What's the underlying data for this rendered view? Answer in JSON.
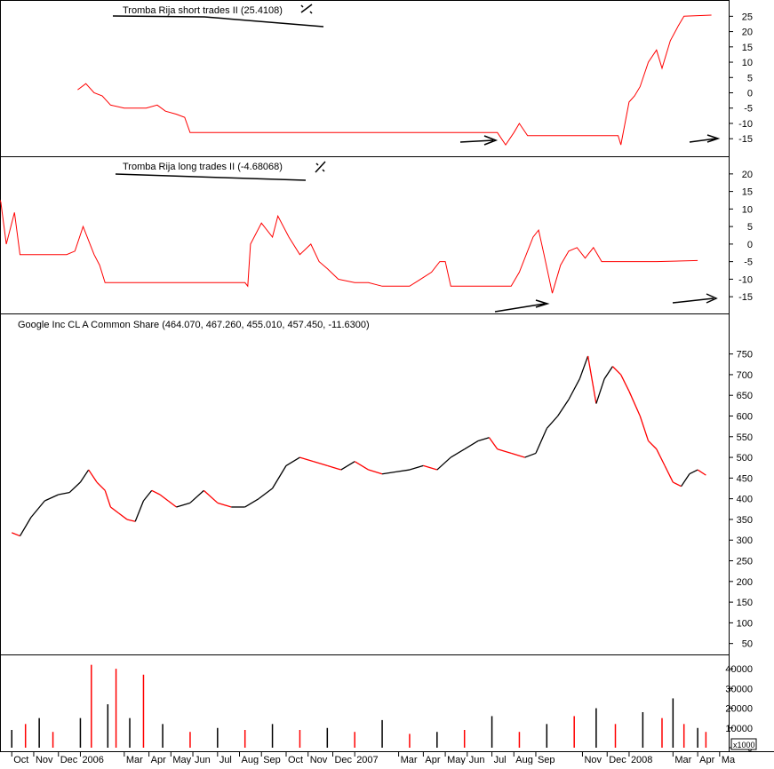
{
  "colors": {
    "background": "#ffffff",
    "up": "#000000",
    "down": "#ff0000",
    "frame": "#000000"
  },
  "panes": {
    "short": {
      "title": "Tromba Rija short trades II (25.4108)",
      "ticks": [
        25,
        20,
        15,
        10,
        5,
        0,
        -5,
        -10,
        -15
      ]
    },
    "long": {
      "title": "Tromba Rija long trades II (-4.68068)",
      "ticks": [
        20,
        15,
        10,
        5,
        0,
        -5,
        -10,
        -15
      ]
    },
    "price": {
      "title": "Google Inc CL A Common Share (464.070, 467.260, 455.010, 457.450, -11.6300)",
      "ticks": [
        750,
        700,
        650,
        600,
        550,
        500,
        450,
        400,
        350,
        300,
        250,
        200,
        150,
        100,
        50
      ]
    },
    "volume": {
      "ticks": [
        40000,
        30000,
        20000,
        10000,
        0
      ],
      "unit_label": "x1000"
    }
  },
  "x_axis": {
    "labels": [
      "Oct",
      "Nov",
      "Dec",
      "2006",
      "Mar",
      "Apr",
      "May",
      "Jun",
      "Jul",
      "Aug",
      "Sep",
      "Oct",
      "Nov",
      "Dec",
      "2007",
      "Mar",
      "Apr",
      "May",
      "Jun",
      "Jul",
      "Aug",
      "Sep",
      "Nov",
      "Dec",
      "2008",
      "Mar",
      "Apr",
      "Ma"
    ]
  },
  "chart_data": [
    {
      "type": "line",
      "title": "Tromba Rija short trades II (25.4108)",
      "ylim": [
        -19,
        28
      ],
      "series": [
        {
          "values": [
            [
              2005.99,
              1
            ],
            [
              2006.02,
              3
            ],
            [
              2006.05,
              0
            ],
            [
              2006.08,
              -1
            ],
            [
              2006.11,
              -4
            ],
            [
              2006.16,
              -5
            ],
            [
              2006.24,
              -5
            ],
            [
              2006.28,
              -4
            ],
            [
              2006.31,
              -6
            ],
            [
              2006.35,
              -7
            ],
            [
              2006.38,
              -8
            ],
            [
              2006.4,
              -13
            ],
            [
              2006.7,
              -13
            ],
            [
              2007.0,
              -13
            ],
            [
              2007.3,
              -13
            ],
            [
              2007.52,
              -13
            ],
            [
              2007.55,
              -17
            ],
            [
              2007.58,
              -13
            ],
            [
              2007.6,
              -10
            ],
            [
              2007.63,
              -14
            ],
            [
              2007.8,
              -14
            ],
            [
              2007.96,
              -14
            ],
            [
              2007.97,
              -17
            ],
            [
              2008.0,
              -3
            ],
            [
              2008.02,
              -1
            ],
            [
              2008.04,
              2
            ],
            [
              2008.07,
              10
            ],
            [
              2008.1,
              14
            ],
            [
              2008.12,
              8
            ],
            [
              2008.15,
              17
            ],
            [
              2008.18,
              22
            ],
            [
              2008.2,
              25
            ],
            [
              2008.3,
              25.4
            ]
          ]
        }
      ]
    },
    {
      "type": "line",
      "title": "Tromba Rija long trades II (-4.68068)",
      "ylim": [
        -18,
        23
      ],
      "series": [
        {
          "values": [
            [
              2005.42,
              -1
            ],
            [
              2005.46,
              7
            ],
            [
              2005.5,
              1
            ],
            [
              2005.55,
              5
            ],
            [
              2005.6,
              8
            ],
            [
              2005.64,
              3
            ],
            [
              2005.67,
              18
            ],
            [
              2005.71,
              12
            ],
            [
              2005.73,
              0
            ],
            [
              2005.76,
              9
            ],
            [
              2005.78,
              -3
            ],
            [
              2005.85,
              -3
            ],
            [
              2005.95,
              -3
            ],
            [
              2005.98,
              -2
            ],
            [
              2006.01,
              5
            ],
            [
              2006.05,
              -3
            ],
            [
              2006.07,
              -6
            ],
            [
              2006.09,
              -11
            ],
            [
              2006.3,
              -11
            ],
            [
              2006.5,
              -11
            ],
            [
              2006.6,
              -11
            ],
            [
              2006.61,
              -12
            ],
            [
              2006.62,
              0
            ],
            [
              2006.66,
              6
            ],
            [
              2006.7,
              2
            ],
            [
              2006.72,
              8
            ],
            [
              2006.76,
              2
            ],
            [
              2006.8,
              -3
            ],
            [
              2006.84,
              0
            ],
            [
              2006.87,
              -5
            ],
            [
              2006.9,
              -7
            ],
            [
              2006.94,
              -10
            ],
            [
              2007.0,
              -11
            ],
            [
              2007.05,
              -11
            ],
            [
              2007.1,
              -12
            ],
            [
              2007.2,
              -12
            ],
            [
              2007.24,
              -10
            ],
            [
              2007.28,
              -8
            ],
            [
              2007.31,
              -5
            ],
            [
              2007.33,
              -5
            ],
            [
              2007.35,
              -12
            ],
            [
              2007.45,
              -12
            ],
            [
              2007.55,
              -12
            ],
            [
              2007.57,
              -12
            ],
            [
              2007.6,
              -8
            ],
            [
              2007.65,
              2
            ],
            [
              2007.67,
              4
            ],
            [
              2007.69,
              -3
            ],
            [
              2007.72,
              -14
            ],
            [
              2007.75,
              -6
            ],
            [
              2007.78,
              -2
            ],
            [
              2007.81,
              -1
            ],
            [
              2007.84,
              -4
            ],
            [
              2007.87,
              -1
            ],
            [
              2007.9,
              -5
            ],
            [
              2007.95,
              -5
            ],
            [
              2008.1,
              -5
            ],
            [
              2008.25,
              -4.7
            ]
          ]
        }
      ]
    },
    {
      "type": "line",
      "title": "Google Inc CL A Common Share (464.070, 467.260, 455.010, 457.450, -11.6300)",
      "ylim": [
        30,
        790
      ],
      "series": [
        {
          "values": [
            [
              2005.75,
              318
            ],
            [
              2005.78,
              310
            ],
            [
              2005.82,
              355
            ],
            [
              2005.87,
              395
            ],
            [
              2005.92,
              410
            ],
            [
              2005.96,
              415
            ],
            [
              2006.0,
              440
            ],
            [
              2006.03,
              470
            ],
            [
              2006.06,
              440
            ],
            [
              2006.09,
              420
            ],
            [
              2006.11,
              380
            ],
            [
              2006.14,
              365
            ],
            [
              2006.17,
              350
            ],
            [
              2006.2,
              345
            ],
            [
              2006.23,
              395
            ],
            [
              2006.26,
              420
            ],
            [
              2006.29,
              410
            ],
            [
              2006.32,
              395
            ],
            [
              2006.35,
              380
            ],
            [
              2006.4,
              390
            ],
            [
              2006.45,
              420
            ],
            [
              2006.5,
              390
            ],
            [
              2006.55,
              380
            ],
            [
              2006.6,
              380
            ],
            [
              2006.65,
              400
            ],
            [
              2006.7,
              425
            ],
            [
              2006.75,
              480
            ],
            [
              2006.8,
              500
            ],
            [
              2006.85,
              490
            ],
            [
              2006.9,
              480
            ],
            [
              2006.95,
              470
            ],
            [
              2007.0,
              490
            ],
            [
              2007.05,
              470
            ],
            [
              2007.1,
              460
            ],
            [
              2007.15,
              465
            ],
            [
              2007.2,
              470
            ],
            [
              2007.25,
              480
            ],
            [
              2007.3,
              470
            ],
            [
              2007.35,
              500
            ],
            [
              2007.4,
              520
            ],
            [
              2007.45,
              540
            ],
            [
              2007.49,
              548
            ],
            [
              2007.52,
              520
            ],
            [
              2007.57,
              510
            ],
            [
              2007.62,
              500
            ],
            [
              2007.66,
              510
            ],
            [
              2007.7,
              570
            ],
            [
              2007.74,
              600
            ],
            [
              2007.78,
              640
            ],
            [
              2007.82,
              690
            ],
            [
              2007.85,
              745
            ],
            [
              2007.88,
              630
            ],
            [
              2007.91,
              690
            ],
            [
              2007.94,
              720
            ],
            [
              2007.97,
              700
            ],
            [
              2008.0,
              660
            ],
            [
              2008.04,
              600
            ],
            [
              2008.07,
              540
            ],
            [
              2008.1,
              520
            ],
            [
              2008.13,
              480
            ],
            [
              2008.16,
              440
            ],
            [
              2008.19,
              430
            ],
            [
              2008.22,
              460
            ],
            [
              2008.25,
              470
            ],
            [
              2008.28,
              457
            ]
          ]
        }
      ]
    },
    {
      "type": "bar",
      "title": "",
      "ylim": [
        0,
        45000
      ],
      "series": [
        {
          "values": [
            [
              2005.75,
              9000
            ],
            [
              2005.8,
              12000
            ],
            [
              2005.85,
              15000
            ],
            [
              2005.9,
              8000
            ],
            [
              2006.0,
              15000
            ],
            [
              2006.04,
              42000
            ],
            [
              2006.1,
              22000
            ],
            [
              2006.13,
              40000
            ],
            [
              2006.18,
              15000
            ],
            [
              2006.23,
              37000
            ],
            [
              2006.3,
              12000
            ],
            [
              2006.4,
              8000
            ],
            [
              2006.5,
              10000
            ],
            [
              2006.6,
              9000
            ],
            [
              2006.7,
              12000
            ],
            [
              2006.8,
              9000
            ],
            [
              2006.9,
              10000
            ],
            [
              2007.0,
              8000
            ],
            [
              2007.1,
              14000
            ],
            [
              2007.2,
              7000
            ],
            [
              2007.3,
              8000
            ],
            [
              2007.4,
              9000
            ],
            [
              2007.5,
              16000
            ],
            [
              2007.6,
              8000
            ],
            [
              2007.7,
              12000
            ],
            [
              2007.8,
              16000
            ],
            [
              2007.88,
              20000
            ],
            [
              2007.95,
              12000
            ],
            [
              2008.05,
              18000
            ],
            [
              2008.12,
              15000
            ],
            [
              2008.16,
              25000
            ],
            [
              2008.2,
              12000
            ],
            [
              2008.25,
              10000
            ],
            [
              2008.28,
              8000
            ]
          ]
        }
      ]
    }
  ]
}
